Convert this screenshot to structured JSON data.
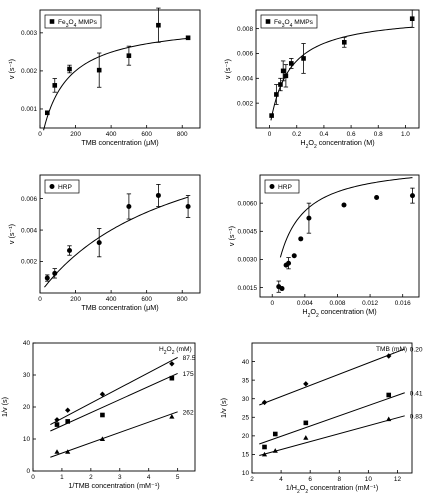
{
  "chart_data": [
    {
      "type": "scatter",
      "legend": "Fe3O4 MMPs",
      "marker": "square",
      "xlabel": "TMB concentration (μM)",
      "ylabel": "v (s⁻¹)",
      "xlim": [
        0,
        900
      ],
      "ylim": [
        0.0005,
        0.0036
      ],
      "xticks": [
        0,
        200,
        400,
        600,
        800
      ],
      "xticklabels": [
        "0",
        "200",
        "400",
        "600",
        "800"
      ],
      "yticks": [
        0.001,
        0.002,
        0.003
      ],
      "yticklabels": [
        "0.001",
        "0.002",
        "0.003"
      ],
      "points": [
        {
          "x": 41,
          "y": 0.0009,
          "err": 0
        },
        {
          "x": 83,
          "y": 0.00162,
          "err": 0.00018
        },
        {
          "x": 166,
          "y": 0.00205,
          "err": 0.0001
        },
        {
          "x": 333,
          "y": 0.00202,
          "err": 0.00045
        },
        {
          "x": 500,
          "y": 0.0024,
          "err": 0.00025
        },
        {
          "x": 666,
          "y": 0.0032,
          "err": 0.00045
        },
        {
          "x": 833,
          "y": 0.00287,
          "err": 0
        }
      ],
      "fit": {
        "vmax": 0.0033,
        "km": 130,
        "x0": 20,
        "x1": 833
      }
    },
    {
      "type": "scatter",
      "legend": "Fe3O4 MMPs",
      "marker": "square",
      "xlabel": "H2O2 concentration (M)",
      "ylabel": "v (s⁻¹)",
      "xlim": [
        -0.1,
        1.1
      ],
      "ylim": [
        0,
        0.0095
      ],
      "xticks": [
        0,
        0.2,
        0.4,
        0.6,
        0.8,
        1.0
      ],
      "xticklabels": [
        "0",
        "0.2",
        "0.4",
        "0.6",
        "0.8",
        "1.0"
      ],
      "yticks": [
        0.002,
        0.004,
        0.006,
        0.008
      ],
      "yticklabels": [
        "0.002",
        "0.004",
        "0.006",
        "0.008"
      ],
      "points": [
        {
          "x": 0.015,
          "y": 0.001,
          "err": 0
        },
        {
          "x": 0.05,
          "y": 0.0027,
          "err": 0.0008
        },
        {
          "x": 0.08,
          "y": 0.0035,
          "err": 0.0005
        },
        {
          "x": 0.1,
          "y": 0.0046,
          "err": 0.0008
        },
        {
          "x": 0.12,
          "y": 0.0042,
          "err": 0.0009
        },
        {
          "x": 0.16,
          "y": 0.0052,
          "err": 0.0004
        },
        {
          "x": 0.25,
          "y": 0.0056,
          "err": 0.0012
        },
        {
          "x": 0.55,
          "y": 0.0069,
          "err": 0.0004
        },
        {
          "x": 1.05,
          "y": 0.0088,
          "err": 0.0007
        }
      ],
      "fit": {
        "vmax": 0.0092,
        "km": 0.14,
        "x0": 0.01,
        "x1": 1.05
      }
    },
    {
      "type": "scatter",
      "legend": "HRP",
      "marker": "circle",
      "xlabel": "TMB concentration (μM)",
      "ylabel": "v (s⁻¹)",
      "xlim": [
        0,
        900
      ],
      "ylim": [
        0,
        0.0075
      ],
      "xticks": [
        0,
        200,
        400,
        600,
        800
      ],
      "xticklabels": [
        "0",
        "200",
        "400",
        "600",
        "800"
      ],
      "yticks": [
        0.002,
        0.004,
        0.006
      ],
      "yticklabels": [
        "0.002",
        "0.004",
        "0.006"
      ],
      "points": [
        {
          "x": 41,
          "y": 0.00095,
          "err": 0.0002
        },
        {
          "x": 83,
          "y": 0.00125,
          "err": 0.0003
        },
        {
          "x": 166,
          "y": 0.0027,
          "err": 0.0003
        },
        {
          "x": 333,
          "y": 0.0032,
          "err": 0.0009
        },
        {
          "x": 500,
          "y": 0.0055,
          "err": 0.0008
        },
        {
          "x": 666,
          "y": 0.0062,
          "err": 0.0007
        },
        {
          "x": 833,
          "y": 0.0055,
          "err": 0.0007
        }
      ],
      "fit": {
        "vmax": 0.0118,
        "km": 780,
        "x0": 25,
        "x1": 833
      }
    },
    {
      "type": "scatter",
      "legend": "HRP",
      "marker": "circle",
      "xlabel": "H2O2 concentration (M)",
      "ylabel": "v (s⁻¹)",
      "xlim": [
        -0.0015,
        0.018
      ],
      "ylim": [
        0.001,
        0.0075
      ],
      "xticks": [
        0,
        0.004,
        0.008,
        0.012,
        0.016
      ],
      "xticklabels": [
        "0",
        "0.004",
        "0.008",
        "0.012",
        "0.016"
      ],
      "yticks": [
        0.0015,
        0.003,
        0.0045,
        0.006
      ],
      "yticklabels": [
        "0.0015",
        "0.0030",
        "0.0045",
        "0.0060"
      ],
      "points": [
        {
          "x": 0.0008,
          "y": 0.00155,
          "err": 0.0003
        },
        {
          "x": 0.0012,
          "y": 0.00145,
          "err": 0
        },
        {
          "x": 0.0017,
          "y": 0.0027,
          "err": 0
        },
        {
          "x": 0.002,
          "y": 0.0028,
          "err": 0.0003
        },
        {
          "x": 0.0027,
          "y": 0.0032,
          "err": 0
        },
        {
          "x": 0.0035,
          "y": 0.0041,
          "err": 0
        },
        {
          "x": 0.0045,
          "y": 0.0052,
          "err": 0.0008
        },
        {
          "x": 0.0088,
          "y": 0.0059,
          "err": 0
        },
        {
          "x": 0.0128,
          "y": 0.0063,
          "err": 0
        },
        {
          "x": 0.0172,
          "y": 0.0064,
          "err": 0.0004
        }
      ],
      "fit": {
        "vmax": 0.0074,
        "km": 0.0022,
        "b": 0.0008,
        "x0": 0.001,
        "x1": 0.0172
      }
    },
    {
      "type": "scatter",
      "xlabel": "1/TMB concentration (mM⁻¹)",
      "ylabel": "1/v (s)",
      "xlim": [
        0,
        5.6
      ],
      "ylim": [
        0,
        40
      ],
      "xticks": [
        0,
        1,
        2,
        3,
        4,
        5
      ],
      "xticklabels": [
        "0",
        "1",
        "2",
        "3",
        "4",
        "5"
      ],
      "yticks": [
        0,
        10,
        20,
        30,
        40
      ],
      "yticklabels": [
        "0",
        "10",
        "20",
        "30",
        "40"
      ],
      "legend_title": "H2O2 (mM)",
      "series": [
        {
          "name": "87.5",
          "marker": "diamond",
          "points": [
            [
              0.83,
              16
            ],
            [
              1.2,
              19
            ],
            [
              2.4,
              24
            ],
            [
              4.8,
              33.5
            ]
          ],
          "line": [
            [
              0.6,
              14.5
            ],
            [
              5.0,
              35.5
            ]
          ]
        },
        {
          "name": "175",
          "marker": "square",
          "points": [
            [
              0.83,
              14.5
            ],
            [
              1.2,
              15.5
            ],
            [
              2.4,
              17.5
            ],
            [
              4.8,
              29
            ]
          ],
          "line": [
            [
              0.6,
              12.5
            ],
            [
              5.0,
              30.5
            ]
          ]
        },
        {
          "name": "262",
          "marker": "triangle",
          "points": [
            [
              0.83,
              6
            ],
            [
              1.2,
              6
            ],
            [
              2.4,
              10
            ],
            [
              4.8,
              17
            ]
          ],
          "line": [
            [
              0.6,
              4.3
            ],
            [
              5.0,
              18.5
            ]
          ]
        }
      ]
    },
    {
      "type": "scatter",
      "xlabel": "1/H2O2 concentration (mM⁻¹)",
      "ylabel": "1/v (s)",
      "xlim": [
        2,
        13
      ],
      "ylim": [
        10,
        45
      ],
      "xticks": [
        2,
        4,
        6,
        8,
        10,
        12
      ],
      "xticklabels": [
        "2",
        "4",
        "6",
        "8",
        "10",
        "12"
      ],
      "yticks": [
        10,
        15,
        20,
        25,
        30,
        35,
        40
      ],
      "yticklabels": [
        "10",
        "15",
        "20",
        "25",
        "30",
        "35",
        "40"
      ],
      "legend_title": "TMB (mM)",
      "series": [
        {
          "name": "0.20",
          "marker": "diamond",
          "points": [
            [
              2.86,
              29
            ],
            [
              5.7,
              34
            ],
            [
              11.4,
              41.5
            ]
          ],
          "line": [
            [
              2.5,
              28.3
            ],
            [
              12.5,
              43.4
            ]
          ]
        },
        {
          "name": "0.41",
          "marker": "square",
          "points": [
            [
              2.86,
              17
            ],
            [
              3.6,
              20.5
            ],
            [
              5.7,
              23.5
            ],
            [
              11.4,
              31
            ]
          ],
          "line": [
            [
              2.5,
              17.8
            ],
            [
              12.5,
              31.6
            ]
          ]
        },
        {
          "name": "0.83",
          "marker": "triangle",
          "points": [
            [
              2.86,
              15
            ],
            [
              3.6,
              16
            ],
            [
              5.7,
              19.5
            ],
            [
              11.4,
              24.5
            ]
          ],
          "line": [
            [
              2.5,
              14.7
            ],
            [
              12.5,
              25.4
            ]
          ]
        }
      ]
    }
  ]
}
